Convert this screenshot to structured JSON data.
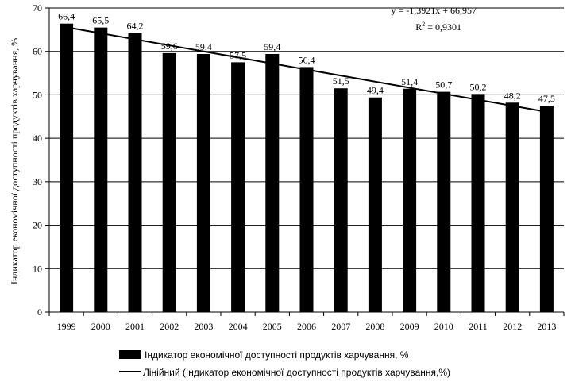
{
  "chart_data": {
    "type": "bar",
    "categories": [
      "1999",
      "2000",
      "2001",
      "2002",
      "2003",
      "2004",
      "2005",
      "2006",
      "2007",
      "2008",
      "2009",
      "2010",
      "2011",
      "2012",
      "2013"
    ],
    "series": [
      {
        "name": "Індикатор економічної доступності продуктів  харчування, %",
        "values": [
          66.4,
          65.5,
          64.2,
          59.6,
          59.4,
          57.5,
          59.4,
          56.4,
          51.5,
          49.4,
          51.4,
          50.7,
          50.2,
          48.2,
          47.5
        ],
        "value_labels": [
          "66,4",
          "65,5",
          "64,2",
          "59,6",
          "59,4",
          "57,5",
          "59,4",
          "56,4",
          "51,5",
          "49,4",
          "51,4",
          "50,7",
          "50,2",
          "48,2",
          "47,5"
        ],
        "color": "#000000"
      }
    ],
    "trendline": {
      "name": "Лінійний (Індикатор економічної доступності продуктів  харчування,%)",
      "slope": -1.3921,
      "intercept": 66.957,
      "equation": "y = -1,3921x + 66,957",
      "r2_prefix": "R",
      "r2_sup": "2",
      "r2_value": " = 0,9301"
    },
    "ylabel": "Індикатор економічної доступності продуктів  харчування, %",
    "xlabel": "",
    "ylim": [
      0,
      70
    ],
    "yticks": [
      "0",
      "10",
      "20",
      "30",
      "40",
      "50",
      "60",
      "70"
    ],
    "grid": true,
    "legend_position": "bottom"
  }
}
